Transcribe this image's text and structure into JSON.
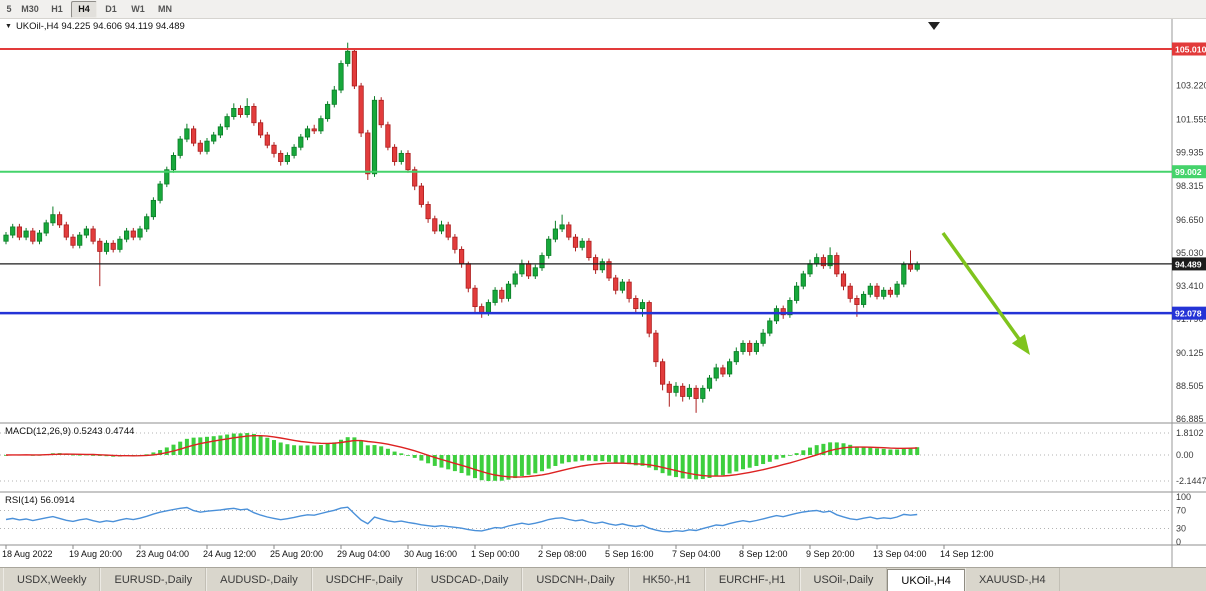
{
  "glyphs": {
    "dropdown": "▼"
  },
  "toolbar": {
    "timeframes": [
      {
        "label": "5",
        "active": false
      },
      {
        "label": "M30",
        "active": false
      },
      {
        "label": "H1",
        "active": false
      },
      {
        "label": "H4",
        "active": true
      },
      {
        "label": "D1",
        "active": false
      },
      {
        "label": "W1",
        "active": false
      },
      {
        "label": "MN",
        "active": false
      }
    ]
  },
  "chart_header": {
    "text": "UKOil-,H4 94.225 94.606 94.119 94.489"
  },
  "levels": [
    {
      "name": "resistance-line-red",
      "price": 105.01,
      "label": "105.010",
      "color": "#e23a3a",
      "width": 2
    },
    {
      "name": "support-line-green",
      "price": 99.002,
      "label": "99.002",
      "color": "#45d36b",
      "width": 2
    },
    {
      "name": "support-line-blue",
      "price": 92.078,
      "label": "92.078",
      "color": "#2433d6",
      "width": 2.5
    },
    {
      "name": "current-price-line",
      "price": 94.489,
      "label": "94.489",
      "color": "#1c1c1c",
      "width": 1.2
    }
  ],
  "chart_data": [
    {
      "type": "candlestick",
      "symbol": "UKOil-",
      "timeframe": "H4",
      "current_bar": {
        "open": 94.225,
        "high": 94.606,
        "low": 94.119,
        "close": 94.489
      },
      "ylim": [
        86.75,
        105.45
      ],
      "y_axis_ticks": [
        "103.220",
        "101.555",
        "99.935",
        "98.315",
        "96.650",
        "95.030",
        "93.410",
        "91.790",
        "90.125",
        "88.505",
        "86.885"
      ],
      "x_axis_labels": [
        "18 Aug 2022",
        "19 Aug 20:00",
        "23 Aug 04:00",
        "24 Aug 12:00",
        "25 Aug 20:00",
        "29 Aug 04:00",
        "30 Aug 16:00",
        "1 Sep 00:00",
        "2 Sep 08:00",
        "5 Sep 16:00",
        "7 Sep 04:00",
        "8 Sep 12:00",
        "9 Sep 20:00",
        "13 Sep 04:00",
        "14 Sep 12:00"
      ],
      "candles": [
        [
          95.6,
          96.05,
          95.45,
          95.9
        ],
        [
          95.9,
          96.45,
          95.75,
          96.3
        ],
        [
          96.3,
          96.45,
          95.65,
          95.8
        ],
        [
          95.8,
          96.25,
          95.65,
          96.1
        ],
        [
          96.1,
          96.25,
          95.45,
          95.6
        ],
        [
          95.6,
          96.15,
          95.45,
          96.0
        ],
        [
          96.0,
          96.65,
          95.85,
          96.5
        ],
        [
          96.5,
          97.3,
          96.35,
          96.9
        ],
        [
          96.9,
          97.05,
          96.25,
          96.4
        ],
        [
          96.4,
          96.55,
          95.65,
          95.8
        ],
        [
          95.8,
          95.95,
          95.25,
          95.4
        ],
        [
          95.4,
          96.05,
          95.25,
          95.9
        ],
        [
          95.9,
          96.35,
          95.75,
          96.2
        ],
        [
          96.2,
          96.35,
          95.45,
          95.6
        ],
        [
          95.6,
          95.75,
          93.4,
          95.1
        ],
        [
          95.1,
          95.65,
          94.95,
          95.5
        ],
        [
          95.5,
          95.65,
          95.05,
          95.2
        ],
        [
          95.2,
          95.85,
          95.05,
          95.7
        ],
        [
          95.7,
          96.25,
          95.55,
          96.1
        ],
        [
          96.1,
          96.25,
          95.65,
          95.8
        ],
        [
          95.8,
          96.35,
          95.65,
          96.2
        ],
        [
          96.2,
          96.95,
          96.05,
          96.8
        ],
        [
          96.8,
          97.75,
          96.65,
          97.6
        ],
        [
          97.6,
          98.55,
          97.45,
          98.4
        ],
        [
          98.4,
          99.25,
          98.25,
          99.1
        ],
        [
          99.1,
          99.95,
          98.95,
          99.8
        ],
        [
          99.8,
          100.75,
          99.65,
          100.6
        ],
        [
          100.6,
          101.35,
          100.45,
          101.1
        ],
        [
          101.1,
          101.25,
          100.25,
          100.4
        ],
        [
          100.4,
          100.55,
          99.85,
          100.0
        ],
        [
          100.0,
          100.65,
          99.85,
          100.5
        ],
        [
          100.5,
          100.95,
          100.35,
          100.8
        ],
        [
          100.8,
          101.35,
          100.65,
          101.2
        ],
        [
          101.2,
          101.85,
          101.05,
          101.7
        ],
        [
          101.7,
          102.35,
          101.55,
          102.1
        ],
        [
          102.1,
          102.25,
          101.65,
          101.8
        ],
        [
          101.8,
          102.6,
          101.65,
          102.2
        ],
        [
          102.2,
          102.35,
          101.25,
          101.4
        ],
        [
          101.4,
          101.55,
          100.65,
          100.8
        ],
        [
          100.8,
          100.95,
          100.15,
          100.3
        ],
        [
          100.3,
          100.45,
          99.7,
          99.9
        ],
        [
          99.9,
          100.05,
          99.3,
          99.5
        ],
        [
          99.5,
          99.95,
          99.35,
          99.8
        ],
        [
          99.8,
          100.35,
          99.65,
          100.2
        ],
        [
          100.2,
          100.85,
          100.05,
          100.7
        ],
        [
          100.7,
          101.25,
          100.55,
          101.1
        ],
        [
          101.1,
          101.3,
          100.85,
          101.0
        ],
        [
          101.0,
          101.75,
          100.85,
          101.6
        ],
        [
          101.6,
          102.45,
          101.45,
          102.3
        ],
        [
          102.3,
          103.2,
          102.15,
          103.0
        ],
        [
          103.0,
          104.45,
          102.85,
          104.3
        ],
        [
          104.3,
          105.32,
          104.15,
          104.9
        ],
        [
          104.9,
          105.05,
          103.05,
          103.2
        ],
        [
          103.2,
          103.35,
          100.7,
          100.9
        ],
        [
          100.9,
          101.05,
          98.6,
          98.9
        ],
        [
          98.9,
          102.7,
          98.75,
          102.5
        ],
        [
          102.5,
          102.65,
          101.15,
          101.3
        ],
        [
          101.3,
          101.45,
          100.05,
          100.2
        ],
        [
          100.2,
          100.35,
          99.3,
          99.5
        ],
        [
          99.5,
          100.05,
          99.35,
          99.9
        ],
        [
          99.9,
          100.05,
          98.95,
          99.1
        ],
        [
          99.1,
          99.25,
          98.1,
          98.3
        ],
        [
          98.3,
          98.45,
          97.25,
          97.4
        ],
        [
          97.4,
          97.55,
          96.5,
          96.7
        ],
        [
          96.7,
          96.85,
          95.95,
          96.1
        ],
        [
          96.1,
          96.6,
          95.95,
          96.4
        ],
        [
          96.4,
          96.55,
          95.65,
          95.8
        ],
        [
          95.8,
          95.95,
          95.0,
          95.2
        ],
        [
          95.2,
          95.35,
          94.3,
          94.5
        ],
        [
          94.5,
          94.6,
          93.1,
          93.3
        ],
        [
          93.3,
          93.45,
          92.1,
          92.4
        ],
        [
          92.4,
          92.55,
          91.85,
          92.1
        ],
        [
          92.1,
          92.75,
          91.95,
          92.6
        ],
        [
          92.6,
          93.35,
          92.45,
          93.2
        ],
        [
          93.2,
          93.35,
          92.6,
          92.8
        ],
        [
          92.8,
          93.65,
          92.65,
          93.5
        ],
        [
          93.5,
          94.15,
          93.35,
          94.0
        ],
        [
          94.0,
          94.7,
          93.85,
          94.5
        ],
        [
          94.5,
          94.65,
          93.75,
          93.9
        ],
        [
          93.9,
          94.45,
          93.75,
          94.3
        ],
        [
          94.3,
          95.05,
          94.15,
          94.9
        ],
        [
          94.9,
          95.85,
          94.75,
          95.7
        ],
        [
          95.7,
          96.6,
          95.55,
          96.2
        ],
        [
          96.2,
          96.9,
          96.05,
          96.4
        ],
        [
          96.4,
          96.55,
          95.65,
          95.8
        ],
        [
          95.8,
          95.95,
          95.1,
          95.3
        ],
        [
          95.3,
          95.75,
          95.15,
          95.6
        ],
        [
          95.6,
          95.75,
          94.65,
          94.8
        ],
        [
          94.8,
          94.95,
          94.0,
          94.2
        ],
        [
          94.2,
          94.75,
          94.05,
          94.6
        ],
        [
          94.6,
          94.75,
          93.65,
          93.8
        ],
        [
          93.8,
          93.95,
          93.0,
          93.2
        ],
        [
          93.2,
          93.75,
          93.05,
          93.6
        ],
        [
          93.6,
          93.75,
          92.6,
          92.8
        ],
        [
          92.8,
          92.95,
          92.05,
          92.3
        ],
        [
          92.3,
          92.75,
          91.9,
          92.6
        ],
        [
          92.6,
          92.7,
          90.9,
          91.1
        ],
        [
          91.1,
          91.25,
          89.45,
          89.7
        ],
        [
          89.7,
          89.85,
          88.3,
          88.6
        ],
        [
          88.6,
          88.75,
          87.5,
          88.2
        ],
        [
          88.2,
          88.7,
          88.0,
          88.5
        ],
        [
          88.5,
          88.65,
          87.75,
          88.0
        ],
        [
          88.0,
          88.6,
          87.85,
          88.4
        ],
        [
          88.4,
          88.55,
          87.2,
          87.9
        ],
        [
          87.9,
          88.55,
          87.7,
          88.4
        ],
        [
          88.4,
          89.05,
          88.25,
          88.9
        ],
        [
          88.9,
          89.6,
          88.75,
          89.4
        ],
        [
          89.4,
          89.55,
          88.95,
          89.1
        ],
        [
          89.1,
          89.85,
          88.95,
          89.7
        ],
        [
          89.7,
          90.4,
          89.55,
          90.2
        ],
        [
          90.2,
          90.75,
          90.05,
          90.6
        ],
        [
          90.6,
          90.75,
          90.0,
          90.2
        ],
        [
          90.2,
          90.75,
          90.05,
          90.6
        ],
        [
          90.6,
          91.3,
          90.45,
          91.1
        ],
        [
          91.1,
          91.85,
          90.95,
          91.7
        ],
        [
          91.7,
          92.45,
          91.55,
          92.3
        ],
        [
          92.3,
          92.45,
          91.8,
          92.0
        ],
        [
          92.0,
          92.85,
          91.85,
          92.7
        ],
        [
          92.7,
          93.6,
          92.55,
          93.4
        ],
        [
          93.4,
          94.15,
          93.25,
          94.0
        ],
        [
          94.0,
          94.7,
          93.85,
          94.5
        ],
        [
          94.5,
          95.0,
          94.35,
          94.8
        ],
        [
          94.8,
          94.95,
          94.25,
          94.4
        ],
        [
          94.4,
          95.3,
          94.25,
          94.9
        ],
        [
          94.9,
          95.05,
          93.85,
          94.0
        ],
        [
          94.0,
          94.15,
          93.2,
          93.4
        ],
        [
          93.4,
          93.55,
          92.6,
          92.8
        ],
        [
          92.8,
          92.95,
          91.9,
          92.5
        ],
        [
          92.5,
          93.15,
          92.35,
          93.0
        ],
        [
          93.0,
          93.55,
          92.85,
          93.4
        ],
        [
          93.4,
          93.55,
          92.75,
          92.9
        ],
        [
          92.9,
          93.35,
          92.75,
          93.2
        ],
        [
          93.2,
          93.35,
          92.85,
          93.0
        ],
        [
          93.0,
          93.65,
          92.85,
          93.5
        ],
        [
          93.5,
          94.6,
          93.35,
          94.45
        ],
        [
          94.45,
          95.15,
          94.1,
          94.23
        ],
        [
          94.225,
          94.606,
          94.119,
          94.489
        ]
      ]
    },
    {
      "type": "macd",
      "label_full": "MACD(12,26,9) 0.5243 0.4744",
      "params": [
        12,
        26,
        9
      ],
      "value_main": 0.5243,
      "value_signal": 0.4744,
      "axis_ticks": [
        "1.8102",
        "0.00",
        "-2.1447"
      ],
      "hist_max": 1.8102,
      "hist_min": -2.1447
    },
    {
      "type": "rsi",
      "label_full": "RSI(14) 56.0914",
      "period": 14,
      "value": 56.0914,
      "axis_ticks": [
        "100",
        "70",
        "30",
        "0"
      ],
      "guide_levels": [
        70,
        30
      ]
    }
  ],
  "annotations": {
    "trend_arrow": {
      "color": "#7fc41d",
      "direction": "down-right"
    }
  },
  "tabs": [
    {
      "label": "USDX,Weekly",
      "active": false
    },
    {
      "label": "EURUSD-,Daily",
      "active": false
    },
    {
      "label": "AUDUSD-,Daily",
      "active": false
    },
    {
      "label": "USDCHF-,Daily",
      "active": false
    },
    {
      "label": "USDCAD-,Daily",
      "active": false
    },
    {
      "label": "USDCNH-,Daily",
      "active": false
    },
    {
      "label": "HK50-,H1",
      "active": false
    },
    {
      "label": "EURCHF-,H1",
      "active": false
    },
    {
      "label": "USOil-,Daily",
      "active": false
    },
    {
      "label": "UKOil-,H4",
      "active": true
    },
    {
      "label": "XAUUSD-,H4",
      "active": false
    }
  ],
  "colors": {
    "up": "#17a83b",
    "up_stroke": "#0c7d28",
    "down": "#e23c3c",
    "down_stroke": "#ad1f1f",
    "macd_hist": "#3ecf3e",
    "macd_signal": "#dd2222",
    "rsi_line": "#4a90d9",
    "axis_text": "#3a3a3a"
  }
}
